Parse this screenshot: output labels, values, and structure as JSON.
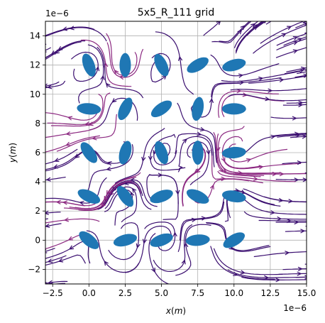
{
  "chart_data": {
    "type": "scatter",
    "title": "5x5_R_111 grid",
    "xlabel": "$x(m)$",
    "ylabel": "$y(m)$",
    "x_offset_label": "1e−6",
    "y_offset_label": "1e−6",
    "xlim": [
      -3,
      15
    ],
    "ylim": [
      -3,
      15
    ],
    "x_ticks": [
      -2.5,
      0.0,
      2.5,
      5.0,
      7.5,
      10.0,
      12.5,
      15.0
    ],
    "x_tick_labels": [
      "−2.5",
      "0.0",
      "2.5",
      "5.0",
      "7.5",
      "10.0",
      "12.5",
      "15.0"
    ],
    "y_ticks": [
      -2,
      0,
      2,
      4,
      6,
      8,
      10,
      12,
      14
    ],
    "y_tick_labels": [
      "−2",
      "0",
      "2",
      "4",
      "6",
      "8",
      "10",
      "12",
      "14"
    ],
    "grid": true,
    "ellipse_color": "#1f77b4",
    "stream_colormap": [
      "#3b0f70",
      "#8c2981",
      "#de4968",
      "#fe9f6d",
      "#fcfdbf",
      "#f0a400"
    ],
    "ellipses": [
      {
        "x": 0,
        "y": 0,
        "angle": -40
      },
      {
        "x": 2.5,
        "y": 0,
        "angle": 15
      },
      {
        "x": 5,
        "y": 0,
        "angle": 20
      },
      {
        "x": 7.5,
        "y": 0,
        "angle": 5
      },
      {
        "x": 10,
        "y": 0,
        "angle": 30
      },
      {
        "x": 0,
        "y": 3,
        "angle": -25
      },
      {
        "x": 2.5,
        "y": 3,
        "angle": -55
      },
      {
        "x": 5,
        "y": 3,
        "angle": 20
      },
      {
        "x": 7.5,
        "y": 3,
        "angle": -25
      },
      {
        "x": 10,
        "y": 3,
        "angle": -10
      },
      {
        "x": 0,
        "y": 6,
        "angle": -55
      },
      {
        "x": 2.5,
        "y": 6,
        "angle": 75
      },
      {
        "x": 5,
        "y": 6,
        "angle": -70
      },
      {
        "x": 7.5,
        "y": 6,
        "angle": 90
      },
      {
        "x": 10,
        "y": 6,
        "angle": 5
      },
      {
        "x": 0,
        "y": 9,
        "angle": -5
      },
      {
        "x": 2.5,
        "y": 9,
        "angle": 65
      },
      {
        "x": 5,
        "y": 9,
        "angle": 35
      },
      {
        "x": 7.5,
        "y": 9,
        "angle": 80
      },
      {
        "x": 10,
        "y": 9,
        "angle": 0
      },
      {
        "x": 0,
        "y": 12,
        "angle": -70
      },
      {
        "x": 2.5,
        "y": 12,
        "angle": 90
      },
      {
        "x": 5,
        "y": 12,
        "angle": -65
      },
      {
        "x": 7.5,
        "y": 12,
        "angle": 30
      },
      {
        "x": 10,
        "y": 12,
        "angle": 15
      }
    ]
  }
}
